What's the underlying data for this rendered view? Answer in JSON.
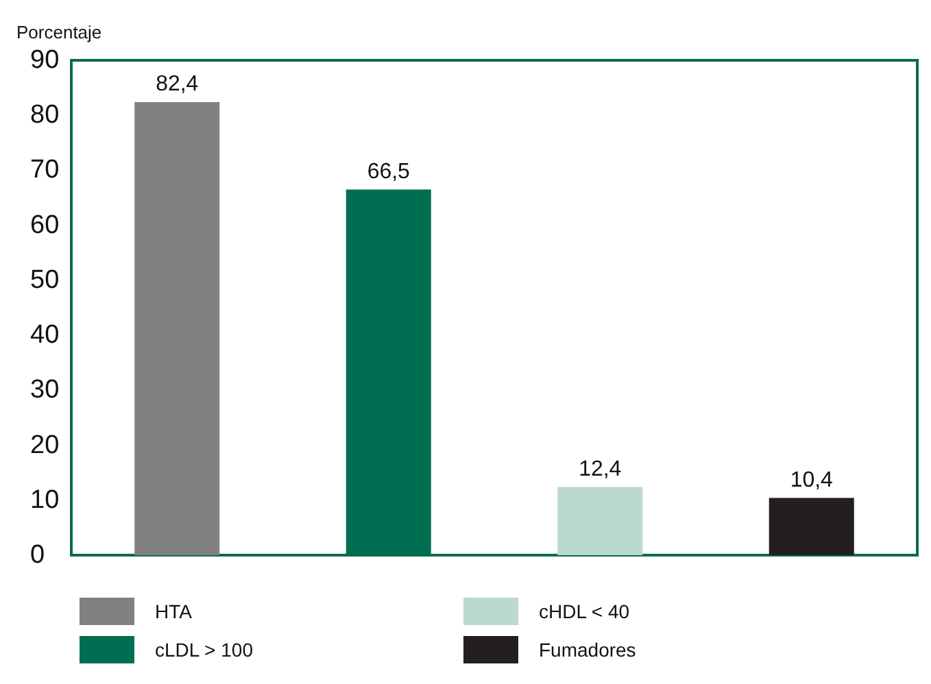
{
  "chart_data": {
    "type": "bar",
    "ylabel": "Porcentaje",
    "categories": [
      null,
      null,
      null,
      null
    ],
    "stacked": true,
    "series": [
      {
        "name": "HTA",
        "color": "#808080",
        "values": [
          82.4,
          null,
          null,
          null
        ],
        "value_labels": [
          "82,4",
          null,
          null,
          null
        ]
      },
      {
        "name": "cLDL > 100",
        "color": "#006e50",
        "values": [
          null,
          66.5,
          null,
          null
        ],
        "value_labels": [
          null,
          "66,5",
          null,
          null
        ]
      },
      {
        "name": "cHDL < 40",
        "color": "#bcd9d0",
        "values": [
          null,
          null,
          12.4,
          null
        ],
        "value_labels": [
          null,
          null,
          "12,4",
          null
        ]
      },
      {
        "name": "Fumadores",
        "color": "#231f20",
        "values": [
          null,
          null,
          null,
          10.4
        ],
        "value_labels": [
          null,
          null,
          null,
          "10,4"
        ]
      }
    ],
    "ylim": [
      0,
      90
    ],
    "yticks": [
      0,
      10,
      20,
      30,
      40,
      50,
      60,
      70,
      80,
      90
    ],
    "grid": false,
    "legend": "bottom"
  }
}
